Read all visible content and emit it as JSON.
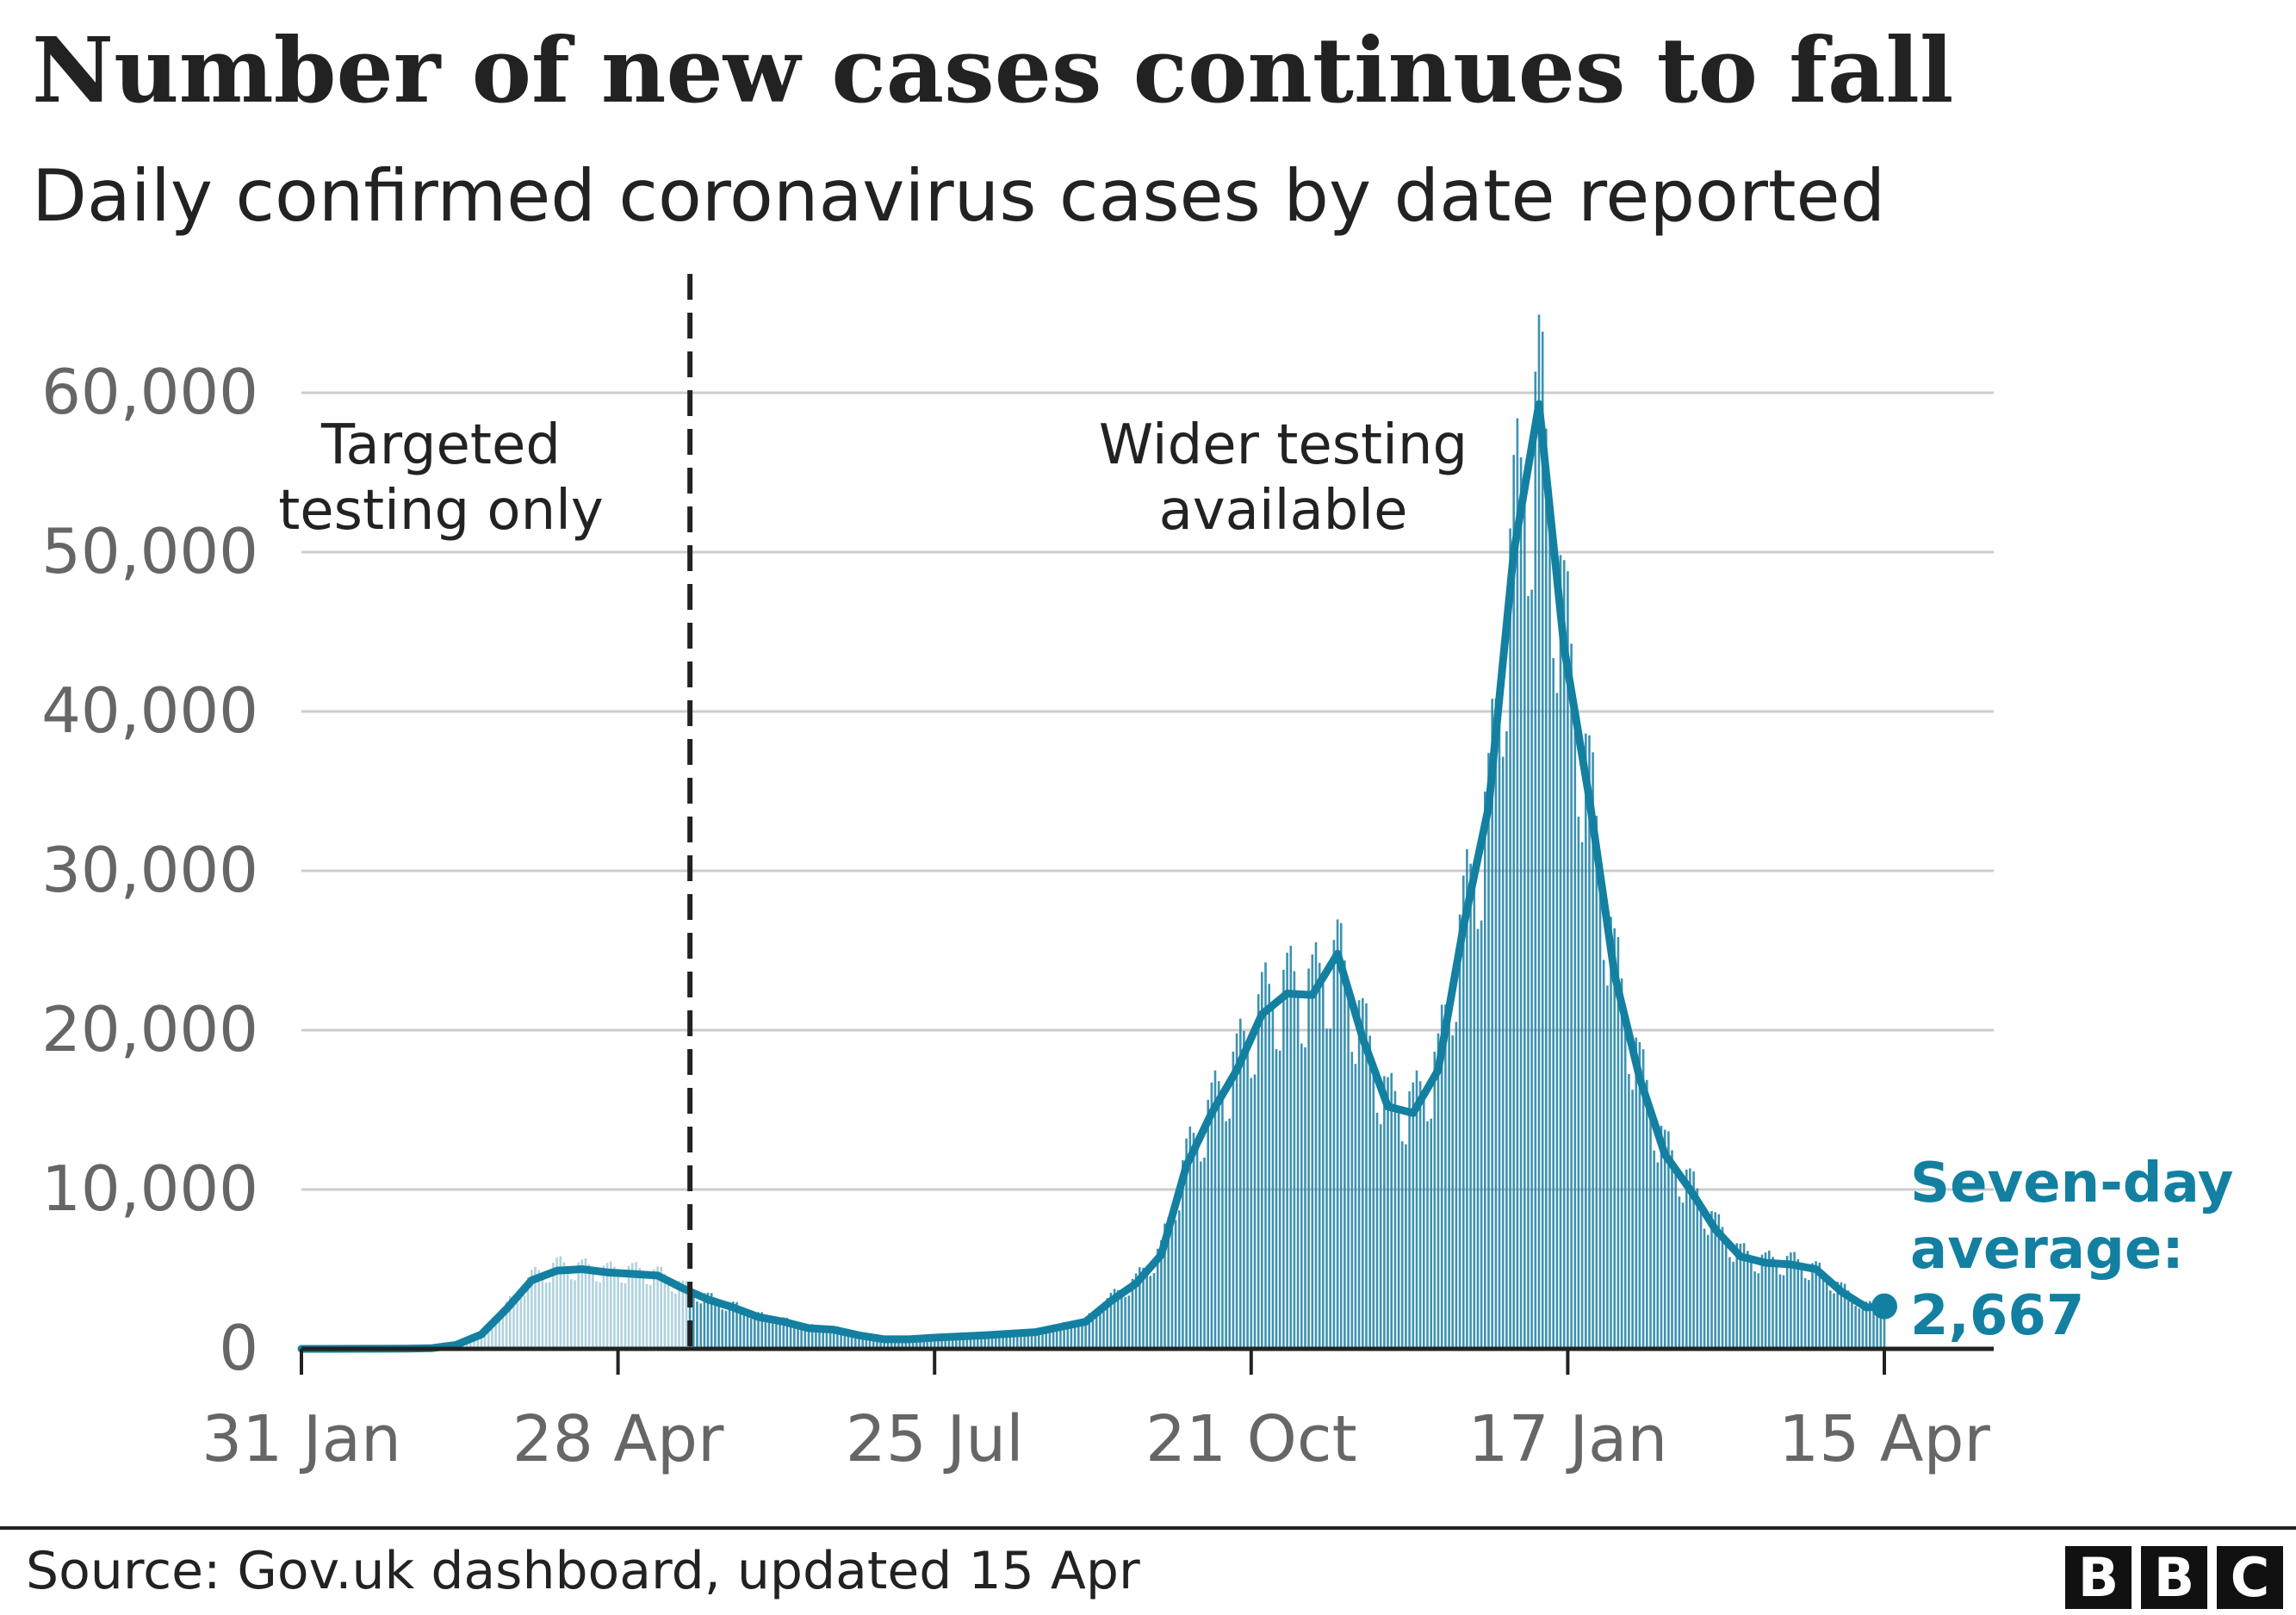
{
  "header": {
    "title": "Number of new cases continues to fall",
    "subtitle": "Daily confirmed coronavirus cases by date reported"
  },
  "annotations": {
    "targeted": [
      "Targeted",
      "testing only"
    ],
    "wider": [
      "Wider testing",
      "available"
    ],
    "latest": [
      "Seven-day",
      "average:",
      "2,667"
    ]
  },
  "footer": {
    "source": "Source: Gov.uk dashboard, updated 15 Apr",
    "logo": [
      "B",
      "B",
      "C"
    ]
  },
  "colors": {
    "bar": "#1a7fa3",
    "line": "#1380a1",
    "grid": "#cccccc",
    "axis": "#222222",
    "tick_text": "#666666",
    "text": "#222222"
  },
  "chart_data": {
    "type": "bar",
    "x_axis": "date",
    "x_range": [
      "2020-01-31",
      "2021-04-15"
    ],
    "ylim": [
      0,
      60000
    ],
    "y_ticks": [
      0,
      10000,
      20000,
      30000,
      40000,
      50000,
      60000
    ],
    "y_tick_labels": [
      "0",
      "10,000",
      "20,000",
      "30,000",
      "40,000",
      "50,000",
      "60,000"
    ],
    "x_ticks": [
      "2020-01-31",
      "2020-04-28",
      "2020-07-25",
      "2020-10-21",
      "2021-01-17",
      "2021-04-15"
    ],
    "x_tick_labels": [
      "31 Jan",
      "28 Apr",
      "25 Jul",
      "21 Oct",
      "17 Jan",
      "15 Apr"
    ],
    "grid": true,
    "testing_change_date": "2020-05-18",
    "series": [
      {
        "name": "Daily confirmed cases",
        "type": "bar",
        "points": [
          [
            "2020-01-31",
            0
          ],
          [
            "2020-02-29",
            10
          ],
          [
            "2020-03-07",
            50
          ],
          [
            "2020-03-14",
            300
          ],
          [
            "2020-03-21",
            1000
          ],
          [
            "2020-03-28",
            2700
          ],
          [
            "2020-04-04",
            4500
          ],
          [
            "2020-04-11",
            5200
          ],
          [
            "2020-04-18",
            5100
          ],
          [
            "2020-04-25",
            4900
          ],
          [
            "2020-05-02",
            4900
          ],
          [
            "2020-05-09",
            4700
          ],
          [
            "2020-05-16",
            3900
          ],
          [
            "2020-05-23",
            3200
          ],
          [
            "2020-05-30",
            2700
          ],
          [
            "2020-06-06",
            2100
          ],
          [
            "2020-06-13",
            1800
          ],
          [
            "2020-06-20",
            1400
          ],
          [
            "2020-06-27",
            1300
          ],
          [
            "2020-07-04",
            900
          ],
          [
            "2020-07-11",
            650
          ],
          [
            "2020-07-18",
            600
          ],
          [
            "2020-07-25",
            750
          ],
          [
            "2020-08-08",
            900
          ],
          [
            "2020-08-22",
            1100
          ],
          [
            "2020-09-05",
            1800
          ],
          [
            "2020-09-12",
            3200
          ],
          [
            "2020-09-19",
            4300
          ],
          [
            "2020-09-26",
            6200
          ],
          [
            "2020-10-03",
            12000
          ],
          [
            "2020-10-10",
            15200
          ],
          [
            "2020-10-17",
            18000
          ],
          [
            "2020-10-24",
            21500
          ],
          [
            "2020-10-31",
            22600
          ],
          [
            "2020-11-07",
            22500
          ],
          [
            "2020-11-14",
            24500
          ],
          [
            "2020-11-21",
            20000
          ],
          [
            "2020-11-28",
            15500
          ],
          [
            "2020-12-05",
            15200
          ],
          [
            "2020-12-12",
            18000
          ],
          [
            "2020-12-19",
            27000
          ],
          [
            "2020-12-26",
            34000
          ],
          [
            "2021-01-02",
            51000
          ],
          [
            "2021-01-09",
            59000
          ],
          [
            "2021-01-16",
            45000
          ],
          [
            "2021-01-23",
            35000
          ],
          [
            "2021-01-30",
            24000
          ],
          [
            "2021-02-06",
            17500
          ],
          [
            "2021-02-13",
            12500
          ],
          [
            "2021-02-20",
            10300
          ],
          [
            "2021-02-27",
            7800
          ],
          [
            "2021-03-06",
            6000
          ],
          [
            "2021-03-13",
            5500
          ],
          [
            "2021-03-20",
            5500
          ],
          [
            "2021-03-27",
            5000
          ],
          [
            "2021-04-03",
            3800
          ],
          [
            "2021-04-10",
            2700
          ],
          [
            "2021-04-15",
            2600
          ]
        ]
      },
      {
        "name": "Seven-day average",
        "type": "line",
        "points": [
          [
            "2020-01-31",
            0
          ],
          [
            "2020-02-29",
            10
          ],
          [
            "2020-03-07",
            40
          ],
          [
            "2020-03-14",
            250
          ],
          [
            "2020-03-21",
            900
          ],
          [
            "2020-03-28",
            2500
          ],
          [
            "2020-04-04",
            4300
          ],
          [
            "2020-04-11",
            4900
          ],
          [
            "2020-04-18",
            5000
          ],
          [
            "2020-04-25",
            4800
          ],
          [
            "2020-05-02",
            4700
          ],
          [
            "2020-05-09",
            4600
          ],
          [
            "2020-05-16",
            3800
          ],
          [
            "2020-05-23",
            3100
          ],
          [
            "2020-05-30",
            2600
          ],
          [
            "2020-06-06",
            2000
          ],
          [
            "2020-06-13",
            1700
          ],
          [
            "2020-06-20",
            1300
          ],
          [
            "2020-06-27",
            1200
          ],
          [
            "2020-07-04",
            850
          ],
          [
            "2020-07-11",
            600
          ],
          [
            "2020-07-18",
            600
          ],
          [
            "2020-07-25",
            700
          ],
          [
            "2020-08-08",
            850
          ],
          [
            "2020-08-22",
            1050
          ],
          [
            "2020-09-05",
            1700
          ],
          [
            "2020-09-12",
            3000
          ],
          [
            "2020-09-19",
            4100
          ],
          [
            "2020-09-26",
            5900
          ],
          [
            "2020-10-03",
            11500
          ],
          [
            "2020-10-10",
            14800
          ],
          [
            "2020-10-17",
            17500
          ],
          [
            "2020-10-24",
            21000
          ],
          [
            "2020-10-31",
            22300
          ],
          [
            "2020-11-07",
            22200
          ],
          [
            "2020-11-14",
            24800
          ],
          [
            "2020-11-21",
            19500
          ],
          [
            "2020-11-28",
            15200
          ],
          [
            "2020-12-05",
            14800
          ],
          [
            "2020-12-12",
            17500
          ],
          [
            "2020-12-19",
            26500
          ],
          [
            "2020-12-26",
            34000
          ],
          [
            "2021-01-02",
            50000
          ],
          [
            "2021-01-09",
            59300
          ],
          [
            "2021-01-16",
            44000
          ],
          [
            "2021-01-23",
            34500
          ],
          [
            "2021-01-30",
            23500
          ],
          [
            "2021-02-06",
            17000
          ],
          [
            "2021-02-13",
            12200
          ],
          [
            "2021-02-20",
            10000
          ],
          [
            "2021-02-27",
            7500
          ],
          [
            "2021-03-06",
            5800
          ],
          [
            "2021-03-13",
            5400
          ],
          [
            "2021-03-20",
            5300
          ],
          [
            "2021-03-27",
            5000
          ],
          [
            "2021-04-03",
            3600
          ],
          [
            "2021-04-10",
            2600
          ],
          [
            "2021-04-15",
            2667
          ]
        ]
      }
    ]
  }
}
